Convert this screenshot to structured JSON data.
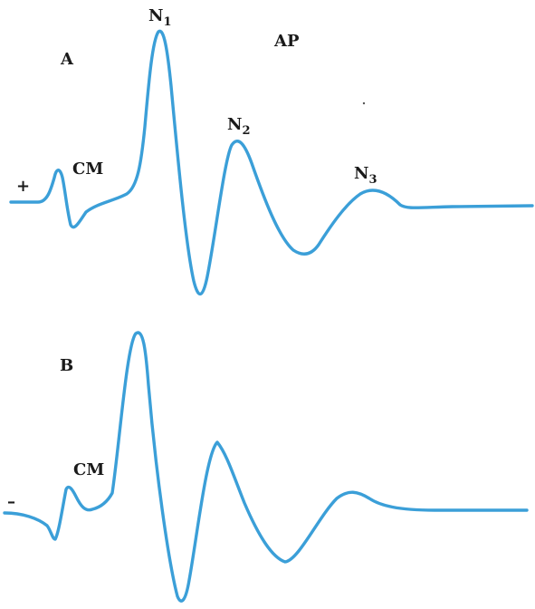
{
  "panel_a": {
    "letter": "A",
    "polarity": "+",
    "cm_label": "CM",
    "ap_label": "AP",
    "peaks": [
      {
        "name": "N",
        "sub": "1"
      },
      {
        "name": "N",
        "sub": "2"
      },
      {
        "name": "N",
        "sub": "3"
      }
    ]
  },
  "panel_b": {
    "letter": "B",
    "polarity": "–",
    "cm_label": "CM"
  },
  "colors": {
    "trace": "#3b9fd8",
    "text": "#1a1a1a",
    "background": "#ffffff"
  }
}
